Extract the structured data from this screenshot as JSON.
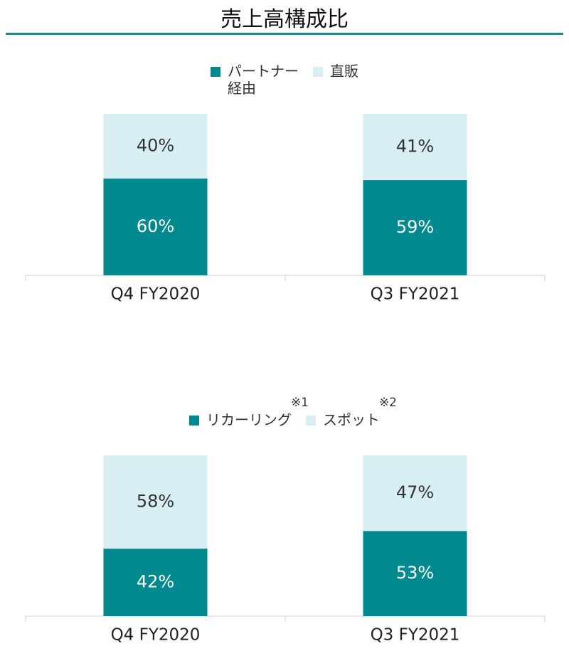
{
  "title": "売上高構成比",
  "chart_data": [
    {
      "type": "bar",
      "stacked": true,
      "categories": [
        "Q4 FY2020",
        "Q3 FY2021"
      ],
      "series": [
        {
          "name": "パートナー経由",
          "color": "#00898f",
          "values": [
            60,
            59
          ],
          "value_labels": [
            "60%",
            "59%"
          ]
        },
        {
          "name": "直販",
          "color": "#d7eef2",
          "values": [
            40,
            41
          ],
          "value_labels": [
            "40%",
            "41%"
          ]
        }
      ]
    },
    {
      "type": "bar",
      "stacked": true,
      "categories": [
        "Q4 FY2020",
        "Q3 FY2021"
      ],
      "series": [
        {
          "name": "リカーリング",
          "note": "※1",
          "color": "#00898f",
          "values": [
            42,
            53
          ],
          "value_labels": [
            "42%",
            "53%"
          ]
        },
        {
          "name": "スポット",
          "note": "※2",
          "color": "#d7eef2",
          "values": [
            58,
            47
          ],
          "value_labels": [
            "58%",
            "47%"
          ]
        }
      ]
    }
  ]
}
